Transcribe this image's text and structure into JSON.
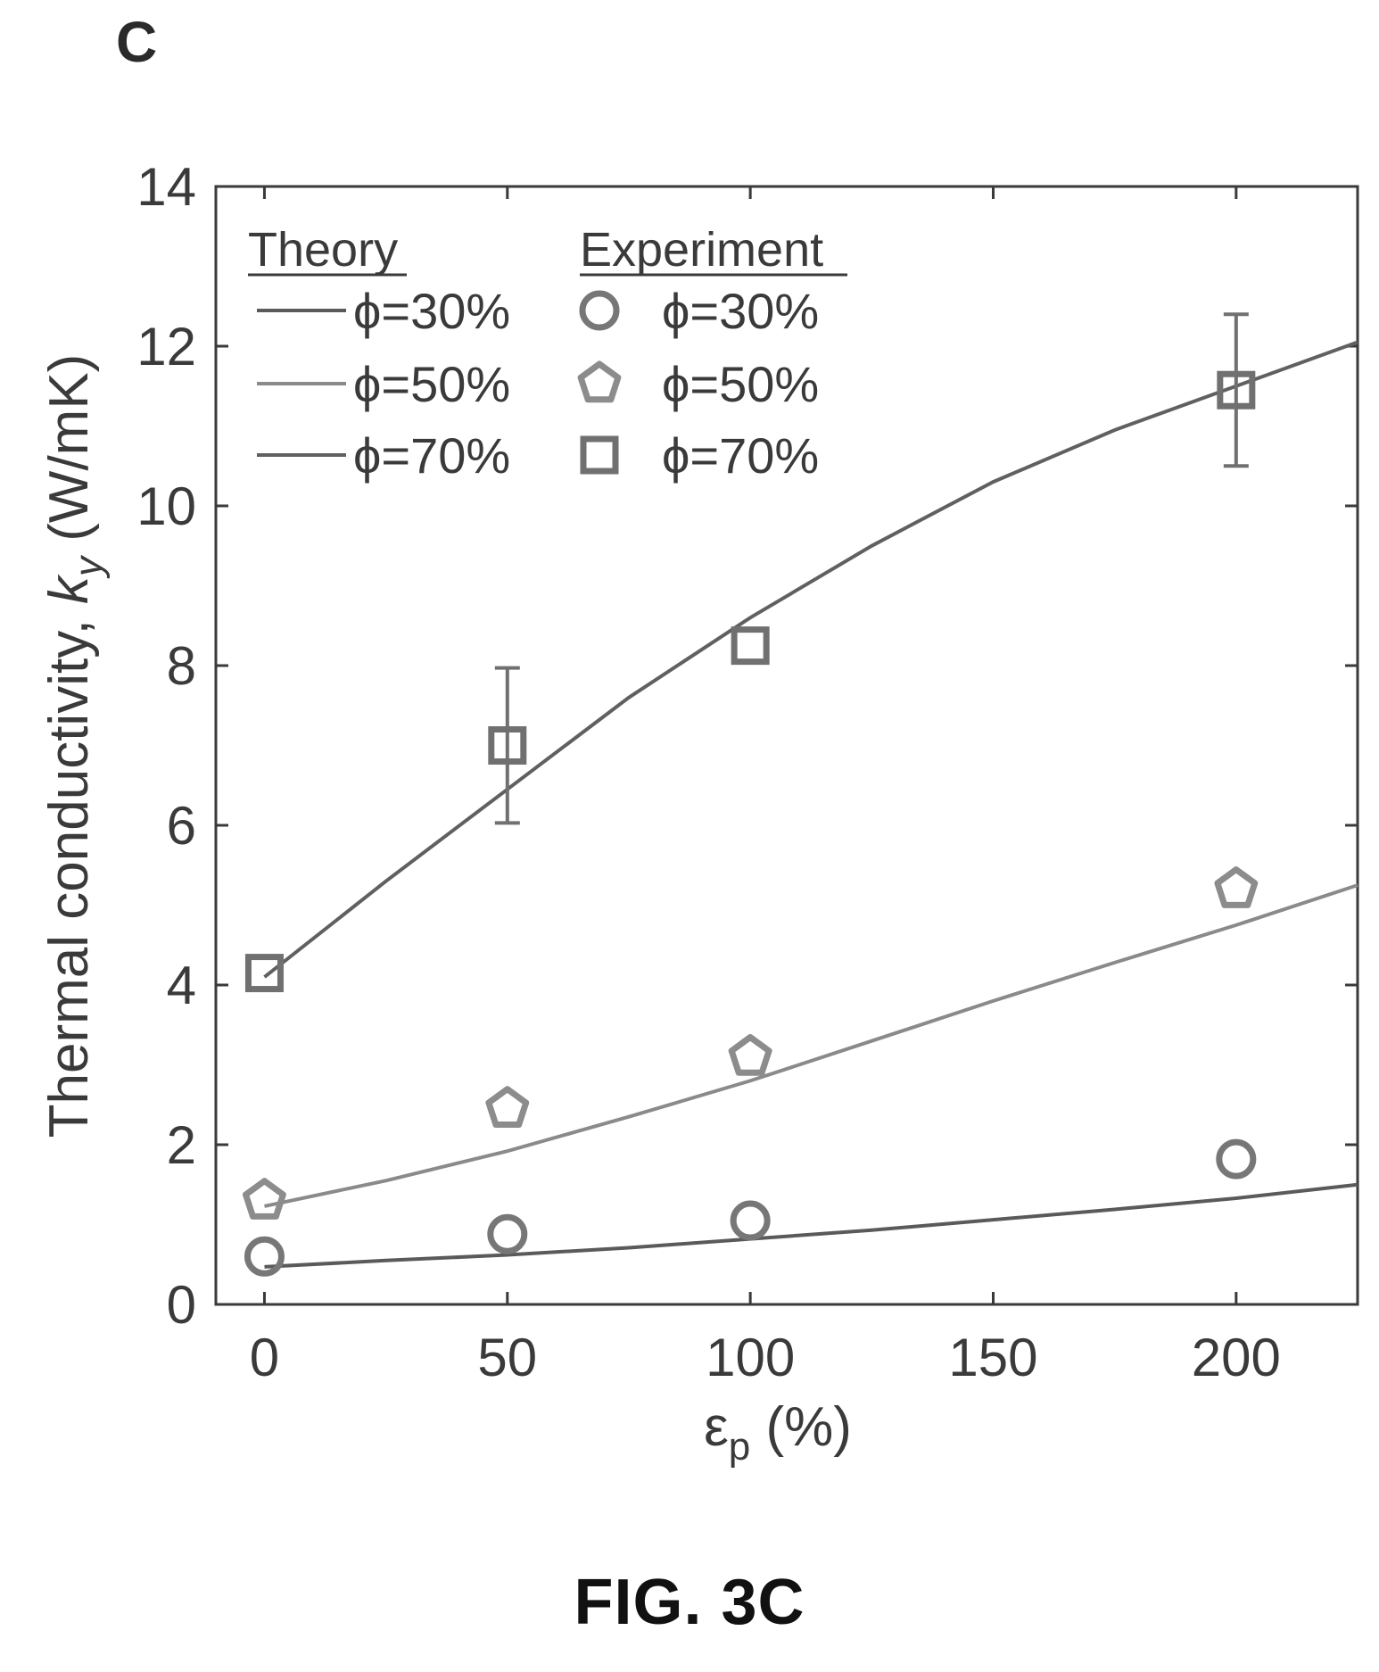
{
  "panel_label": "C",
  "caption": "FIG. 3C",
  "chart_data": {
    "type": "scatter",
    "xlabel": {
      "symbol": "ε",
      "subscript": "p",
      "rest": " (%)"
    },
    "ylabel": {
      "before": "Thermal conductivity, ",
      "symbol": "k",
      "subscript": "y",
      "after": " (W/mK)"
    },
    "xlim": [
      -10,
      225
    ],
    "ylim": [
      0,
      14
    ],
    "xticks": [
      0,
      50,
      100,
      150,
      200
    ],
    "yticks": [
      0,
      2,
      4,
      6,
      8,
      10,
      12,
      14
    ],
    "legend": {
      "placement": "top-left",
      "theory_title": "Theory",
      "experiment_title": "Experiment"
    },
    "theory": [
      {
        "name": "ϕ=30%",
        "color": "#5a5a5a",
        "x": [
          0,
          25,
          50,
          75,
          100,
          125,
          150,
          175,
          200,
          225
        ],
        "y": [
          0.47,
          0.55,
          0.62,
          0.71,
          0.82,
          0.93,
          1.06,
          1.19,
          1.33,
          1.5
        ]
      },
      {
        "name": "ϕ=50%",
        "color": "#8a8a8a",
        "x": [
          0,
          25,
          50,
          75,
          100,
          125,
          150,
          175,
          200,
          225
        ],
        "y": [
          1.23,
          1.55,
          1.92,
          2.35,
          2.8,
          3.3,
          3.8,
          4.28,
          4.75,
          5.25
        ]
      },
      {
        "name": "ϕ=70%",
        "color": "#606060",
        "x": [
          0,
          25,
          50,
          75,
          100,
          125,
          150,
          175,
          200,
          225
        ],
        "y": [
          4.1,
          5.3,
          6.45,
          7.6,
          8.6,
          9.5,
          10.3,
          10.95,
          11.5,
          12.05
        ]
      }
    ],
    "experiment": [
      {
        "name": "ϕ=30%",
        "marker": "circle",
        "color": "#777777",
        "x": [
          0,
          50,
          100,
          200
        ],
        "y": [
          0.6,
          0.88,
          1.05,
          1.82
        ],
        "err": [
          0,
          0,
          0,
          0
        ]
      },
      {
        "name": "ϕ=50%",
        "marker": "pentagon",
        "color": "#8c8c8c",
        "x": [
          0,
          50,
          100,
          200
        ],
        "y": [
          1.3,
          2.45,
          3.1,
          5.2
        ],
        "err": [
          0,
          0,
          0,
          0
        ]
      },
      {
        "name": "ϕ=70%",
        "marker": "square",
        "color": "#707070",
        "x": [
          0,
          50,
          100,
          200
        ],
        "y": [
          4.15,
          7.0,
          8.25,
          11.45
        ],
        "err": [
          0.15,
          0.97,
          0.25,
          0.95
        ]
      }
    ]
  }
}
